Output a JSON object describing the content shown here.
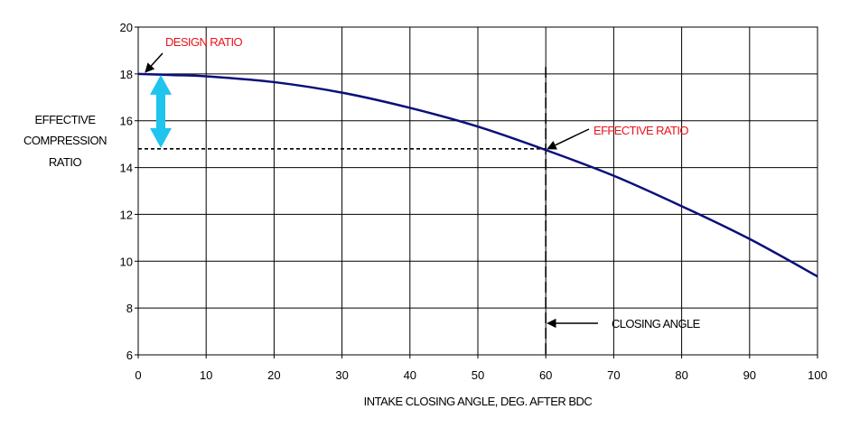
{
  "chart_data": {
    "type": "line",
    "title": "",
    "xlabel": "INTAKE CLOSING ANGLE, DEG. AFTER BDC",
    "ylabel_lines": [
      "EFFECTIVE",
      "COMPRESSION",
      "RATIO"
    ],
    "xlim": [
      0,
      100
    ],
    "ylim": [
      6,
      20
    ],
    "x_ticks": [
      0,
      10,
      20,
      30,
      40,
      50,
      60,
      70,
      80,
      90,
      100
    ],
    "y_ticks": [
      6,
      8,
      10,
      12,
      14,
      16,
      18,
      20
    ],
    "grid": true,
    "legend": "none",
    "series": [
      {
        "color": "#0a0f7a",
        "x": [
          0,
          5,
          10,
          20,
          30,
          40,
          50,
          60,
          70,
          80,
          90,
          100
        ],
        "y": [
          18.0,
          17.95,
          17.9,
          17.65,
          17.2,
          16.55,
          15.75,
          14.75,
          13.65,
          12.35,
          10.95,
          9.35
        ]
      }
    ],
    "annotations": {
      "design_ratio": {
        "text": "DESIGN RATIO",
        "x": 0,
        "y": 18.0
      },
      "effective_ratio": {
        "text": "EFFECTIVE RATIO",
        "x": 60,
        "y": 14.8
      },
      "closing_angle": {
        "text": "CLOSING ANGLE",
        "x": 60
      }
    },
    "colors": {
      "curve": "#0a0f7a",
      "annotation_text": "#e8141b",
      "double_arrow": "#1fc4ef"
    }
  }
}
